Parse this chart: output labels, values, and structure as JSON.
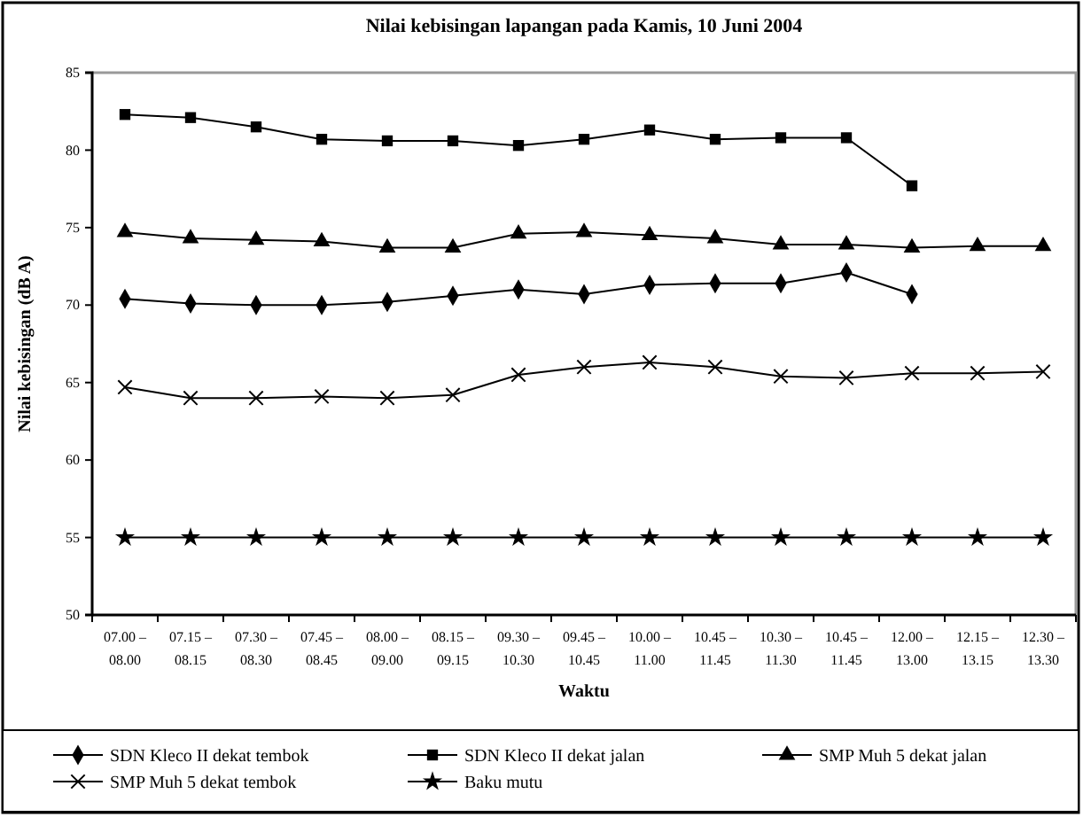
{
  "chart_data": {
    "type": "line",
    "title": "Nilai kebisingan lapangan pada Kamis, 10 Juni 2004",
    "xlabel": "Waktu",
    "ylabel": "Nilai kebisingan (dB A)",
    "categories": [
      "07.00 – 08.00",
      "07.15 – 08.15",
      "07.30 – 08.30",
      "07.45 – 08.45",
      "08.00 – 09.00",
      "08.15 – 09.15",
      "09.30 – 10.30",
      "09.45 – 10.45",
      "10.00 – 11.00",
      "10.45 – 11.45",
      "10.30 – 11.30",
      "10.45 – 11.45",
      "12.00 – 13.00",
      "12.15 – 13.15",
      "12.30 – 13.30"
    ],
    "ylim": [
      50,
      85
    ],
    "yticks": [
      50,
      55,
      60,
      65,
      70,
      75,
      80,
      85
    ],
    "grid": false,
    "legend": "bottom",
    "line_style": "solid",
    "series": [
      {
        "name": "SDN Kleco II dekat tembok",
        "color": "#000000",
        "marker": "diamond",
        "values": [
          70.4,
          70.1,
          70.0,
          70.0,
          70.2,
          70.6,
          71.0,
          70.7,
          71.3,
          71.4,
          71.4,
          72.1,
          70.7,
          null,
          null
        ]
      },
      {
        "name": "SDN Kleco II dekat jalan",
        "color": "#000000",
        "marker": "square",
        "values": [
          82.3,
          82.1,
          81.5,
          80.7,
          80.6,
          80.6,
          80.3,
          80.7,
          81.3,
          80.7,
          80.8,
          80.8,
          77.7,
          null,
          null
        ]
      },
      {
        "name": "SMP Muh 5 dekat jalan",
        "color": "#000000",
        "marker": "triangle",
        "values": [
          74.7,
          74.3,
          74.2,
          74.1,
          73.7,
          73.7,
          74.6,
          74.7,
          74.5,
          74.3,
          73.9,
          73.9,
          73.7,
          73.8,
          73.8
        ]
      },
      {
        "name": "SMP Muh 5 dekat tembok",
        "color": "#000000",
        "marker": "cross",
        "values": [
          64.7,
          64.0,
          64.0,
          64.1,
          64.0,
          64.2,
          65.5,
          66.0,
          66.3,
          66.0,
          65.4,
          65.3,
          65.6,
          65.6,
          65.7
        ]
      },
      {
        "name": "Baku mutu",
        "color": "#000000",
        "marker": "star",
        "values": [
          55,
          55,
          55,
          55,
          55,
          55,
          55,
          55,
          55,
          55,
          55,
          55,
          55,
          55,
          55
        ]
      }
    ]
  }
}
